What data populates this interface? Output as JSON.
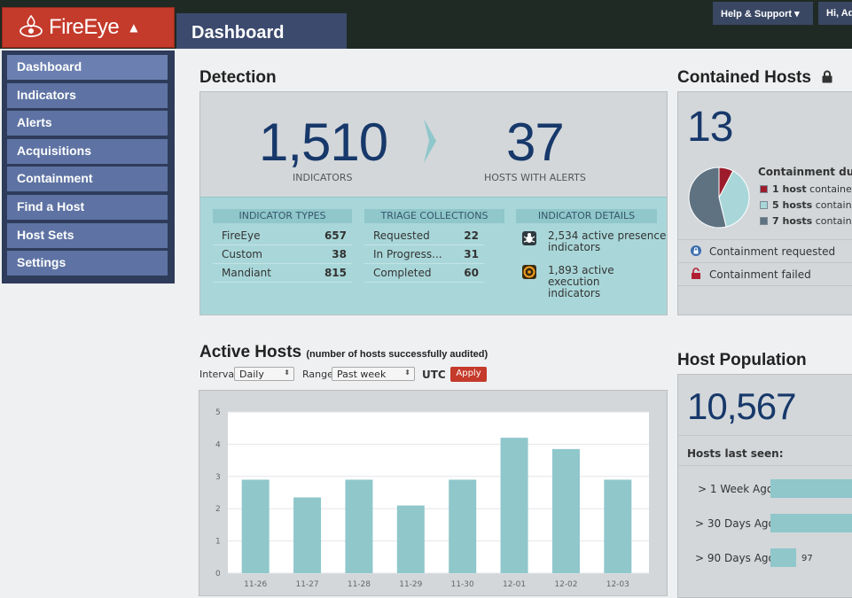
{
  "header": {
    "brand": "FireEye",
    "active_tab": "Dashboard",
    "help_button": "Help & Support ▾",
    "user_greeting": "Hi, Adi"
  },
  "sidebar": {
    "items": [
      {
        "label": "Dashboard"
      },
      {
        "label": "Indicators"
      },
      {
        "label": "Alerts"
      },
      {
        "label": "Acquisitions"
      },
      {
        "label": "Containment"
      },
      {
        "label": "Find a Host"
      },
      {
        "label": "Host Sets"
      },
      {
        "label": "Settings"
      }
    ]
  },
  "detection": {
    "title": "Detection",
    "indicators_count": "1,510",
    "indicators_label": "INDICATORS",
    "hosts_count": "37",
    "hosts_label": "HOSTS WITH ALERTS",
    "indicator_types": {
      "header": "INDICATOR TYPES",
      "rows": [
        {
          "label": "FireEye",
          "value": "657"
        },
        {
          "label": "Custom",
          "value": "38"
        },
        {
          "label": "Mandiant",
          "value": "815"
        }
      ]
    },
    "triage_collections": {
      "header": "TRIAGE COLLECTIONS",
      "rows": [
        {
          "label": "Requested",
          "value": "22"
        },
        {
          "label": "In Progress...",
          "value": "31"
        },
        {
          "label": "Completed",
          "value": "60"
        }
      ]
    },
    "indicator_details": {
      "header": "INDICATOR DETAILS",
      "items": [
        {
          "line1": "2,534 active presence",
          "line2": "indicators",
          "icon": "bug-icon"
        },
        {
          "line1": "1,893 active execution",
          "line2": "indicators",
          "icon": "biohazard-icon"
        }
      ]
    }
  },
  "contained_hosts": {
    "title": "Contained Hosts",
    "count": "13",
    "legend_title": "Containment durat",
    "legend": [
      {
        "bold": "1 host",
        "text": " contained",
        "color": "#9c1c2c",
        "value": 1
      },
      {
        "bold": "5 hosts",
        "text": " containe",
        "color": "#a9d7d9",
        "value": 5
      },
      {
        "bold": "7 hosts",
        "text": " containe",
        "color": "#5f7281",
        "value": 7
      }
    ],
    "status": [
      {
        "label": "Containment requested",
        "icon": "lock-icon"
      },
      {
        "label": "Containment failed",
        "icon": "unlock-icon"
      }
    ]
  },
  "active_hosts": {
    "title": "Active Hosts",
    "subtitle": "(number of hosts successfully audited)",
    "interval_label": "Interval:",
    "interval_value": "Daily",
    "range_label": "Range:",
    "range_value": "Past week",
    "timezone": "UTC",
    "apply_label": "Apply"
  },
  "chart_data": {
    "type": "bar",
    "categories": [
      "11-26",
      "11-27",
      "11-28",
      "11-29",
      "11-30",
      "12-01",
      "12-02",
      "12-03"
    ],
    "values": [
      2.9,
      2.35,
      2.9,
      2.1,
      2.9,
      4.2,
      3.85,
      2.9
    ],
    "title": "",
    "xlabel": "",
    "ylabel": "",
    "ylim": [
      0,
      5
    ],
    "yticks": [
      "0",
      "1",
      "2",
      "3",
      "4",
      "5"
    ],
    "grid": true,
    "bar_color": "#8fc7cb"
  },
  "host_population": {
    "title": "Host Population",
    "count": "10,567",
    "last_seen_label": "Hosts last seen:",
    "rows": [
      {
        "label": "> 1 Week Ago",
        "value": ""
      },
      {
        "label": "> 30 Days Ago",
        "value": ""
      },
      {
        "label": "> 90 Days Ago",
        "value": "97"
      }
    ]
  },
  "colors": {
    "brand_red": "#c43a2b",
    "nav_blue": "#5e73a3",
    "number_blue": "#17386a",
    "teal": "#a9d7d9"
  }
}
